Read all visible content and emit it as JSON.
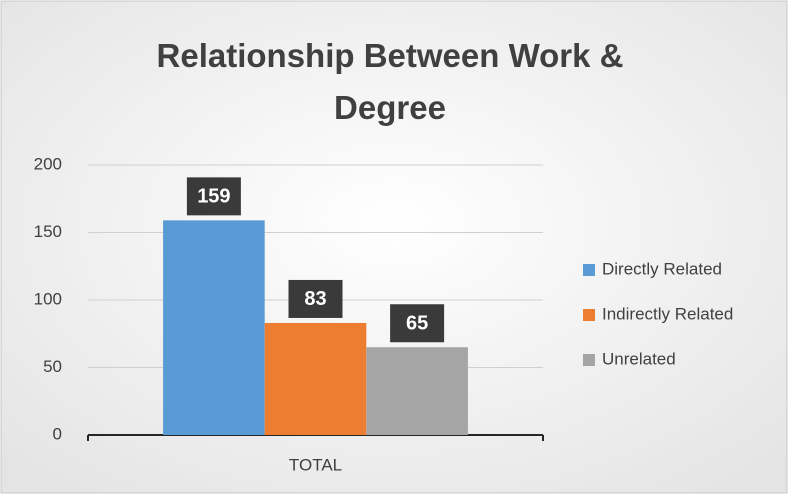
{
  "chart_data": {
    "type": "bar",
    "title": "Relationship Between Work & Degree",
    "categories": [
      "TOTAL"
    ],
    "series": [
      {
        "name": "Directly Related",
        "color": "#5b9bd5",
        "values": [
          159
        ]
      },
      {
        "name": "Indirectly Related",
        "color": "#ed7d31",
        "values": [
          83
        ]
      },
      {
        "name": "Unrelated",
        "color": "#a5a5a5",
        "values": [
          65
        ]
      }
    ],
    "ylim": [
      0,
      200
    ],
    "yticks": [
      0,
      50,
      100,
      150,
      200
    ],
    "grid": true,
    "legend": "right"
  }
}
